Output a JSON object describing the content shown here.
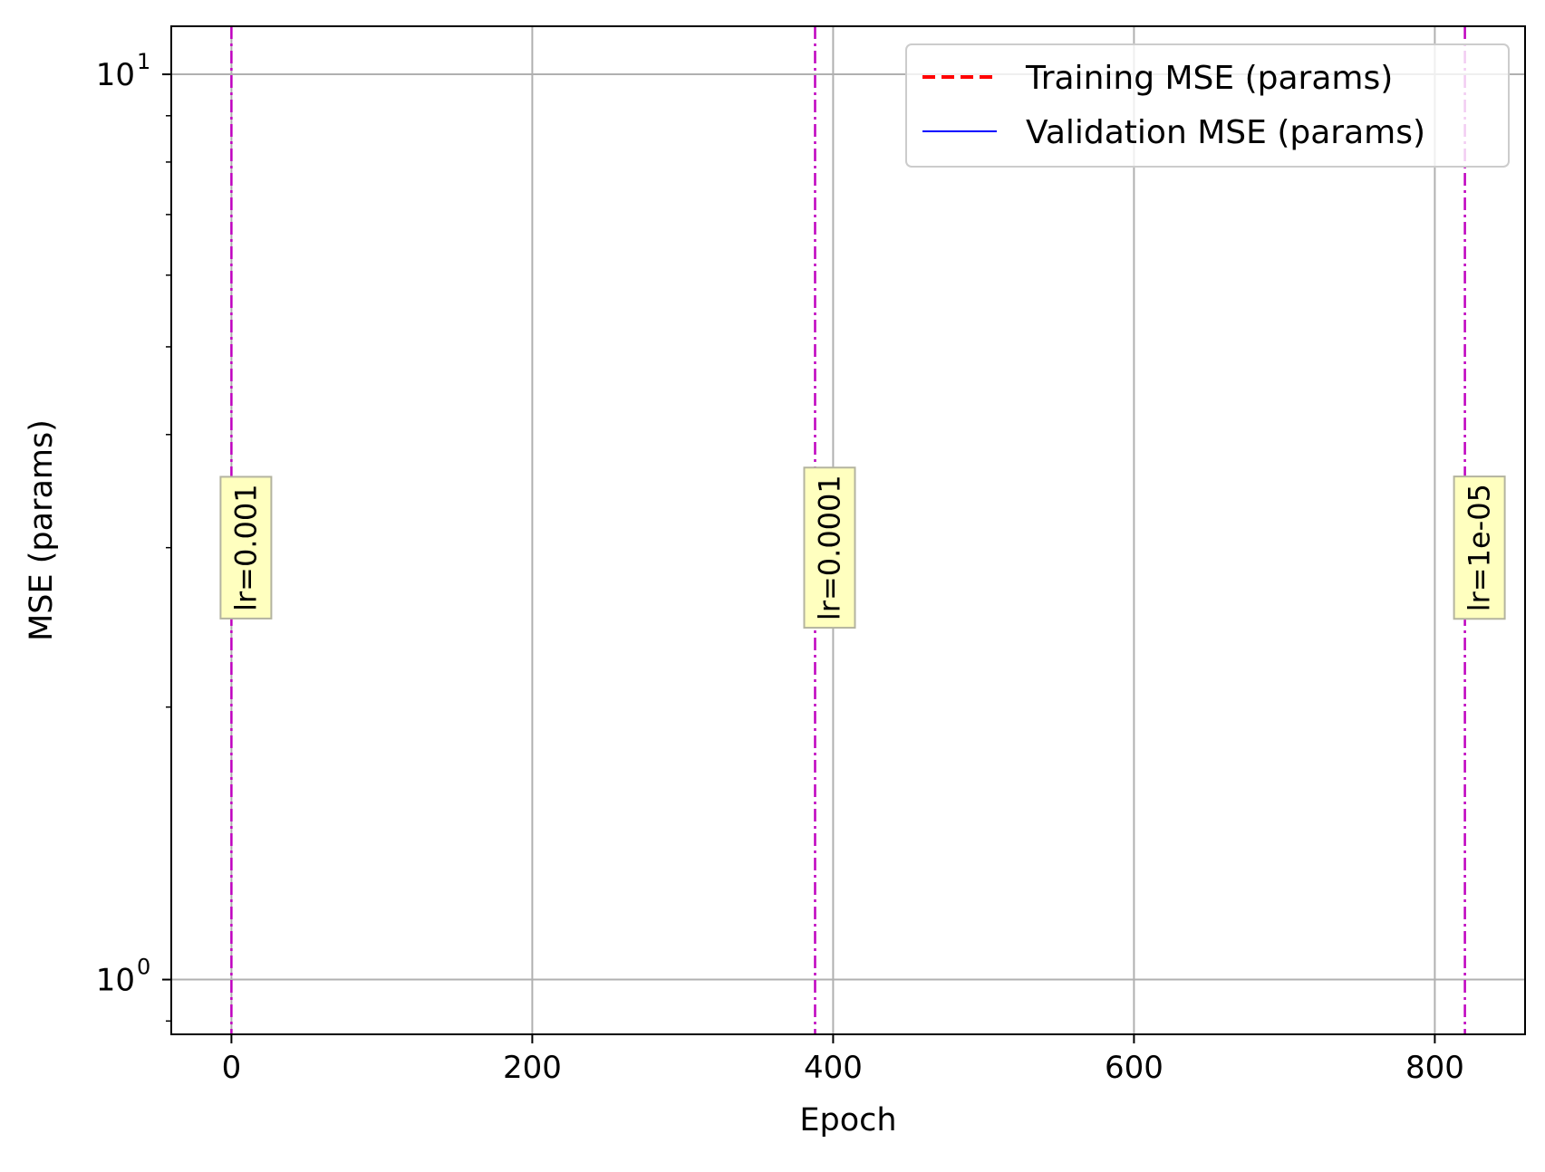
{
  "chart_data": {
    "type": "line",
    "title": "",
    "xlabel": "Epoch",
    "ylabel": "MSE (params)",
    "xlim": [
      -40,
      860
    ],
    "ylim": [
      0.87,
      11.3
    ],
    "yscale": "log",
    "grid": true,
    "x_ticks": [
      0,
      200,
      400,
      600,
      800
    ],
    "x_tick_labels": [
      "0",
      "200",
      "400",
      "600",
      "800"
    ],
    "y_ticks": [
      1,
      10
    ],
    "y_tick_labels": [
      {
        "base": "10",
        "exp": "0"
      },
      {
        "base": "10",
        "exp": "1"
      }
    ],
    "series": [
      {
        "name": "Training MSE (params)",
        "color": "#ff0000",
        "style": "dashed",
        "x": [],
        "y": []
      },
      {
        "name": "Validation MSE (params)",
        "color": "#0000ff",
        "style": "solid",
        "x": [],
        "y": []
      }
    ],
    "legend": {
      "position": "top-right"
    },
    "lr_markers": [
      {
        "epoch": 0,
        "label": "lr=0.001"
      },
      {
        "epoch": 388,
        "label": "lr=0.0001"
      },
      {
        "epoch": 820,
        "label": "lr=1e-05"
      }
    ],
    "lr_marker_color": "#bf00bf",
    "lr_label_background": "#ffffbf"
  }
}
